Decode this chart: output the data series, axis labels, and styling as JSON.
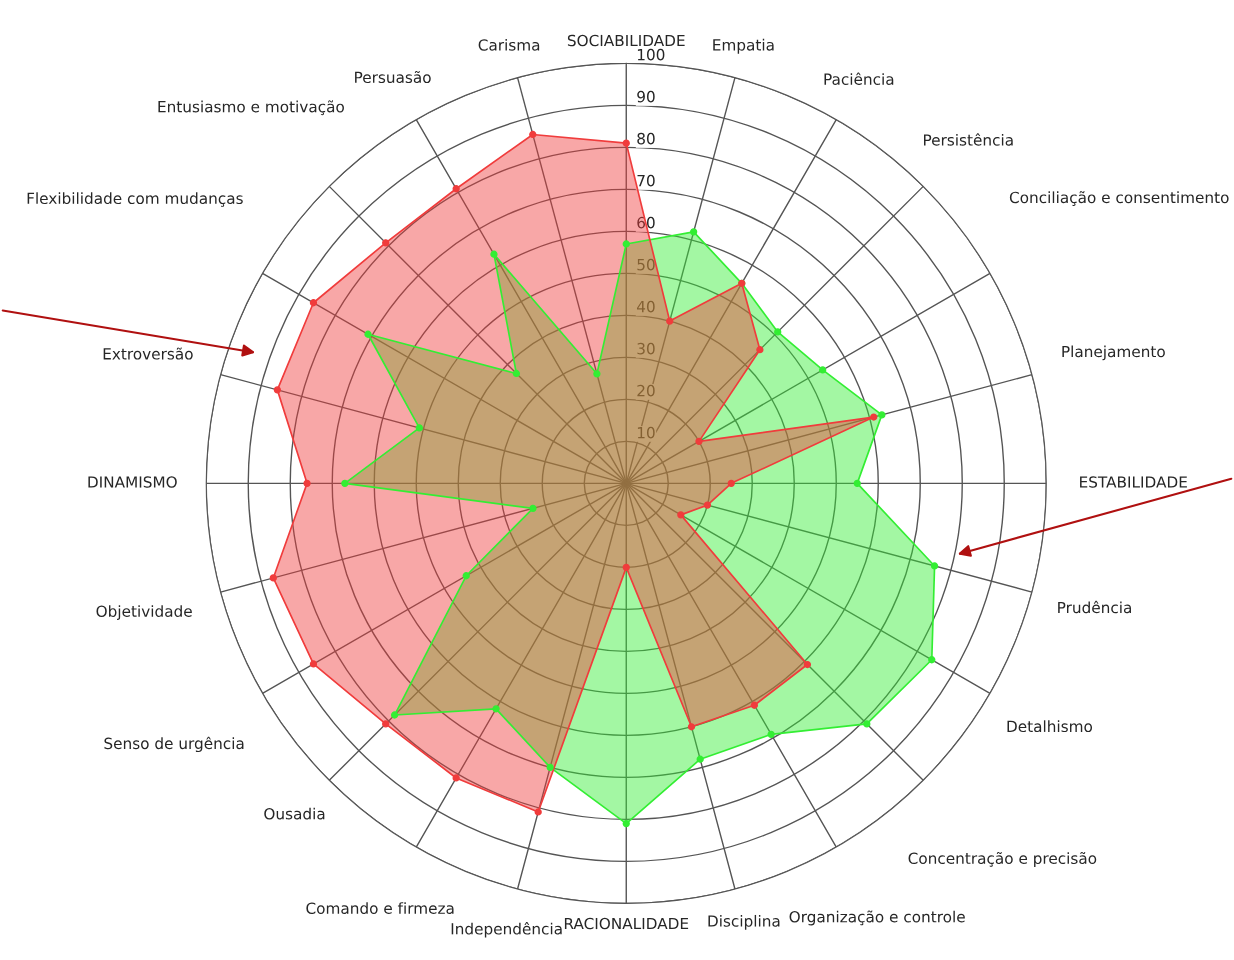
{
  "chart_data": {
    "type": "radar",
    "categories": [
      "SOCIABILIDADE",
      "Empatia",
      "Paciência",
      "Persistência",
      "Conciliação e consentimento",
      "Planejamento",
      "ESTABILIDADE",
      "Prudência",
      "Detalhismo",
      "Concentração e precisão",
      "Organização e controle",
      "Disciplina",
      "RACIONALIDADE",
      "Independência",
      "Comando e firmeza",
      "Ousadia",
      "Senso de urgência",
      "Objetividade",
      "DINAMISMO",
      "Extroversão",
      "Flexibilidade com mudanças",
      "Entusiasmo e motivação",
      "Persuasão",
      "Carisma"
    ],
    "series": [
      {
        "color": "#33ee33",
        "values": [
          57,
          62,
          55,
          51,
          54,
          63,
          55,
          76,
          84,
          81,
          69,
          68,
          81,
          70,
          62,
          78,
          44,
          23,
          67,
          51,
          71,
          37,
          63,
          27
        ]
      },
      {
        "color": "#f03c3c",
        "values": [
          81,
          40,
          55,
          45,
          20,
          61,
          25,
          20,
          15,
          61,
          61,
          60,
          20,
          81,
          81,
          81,
          86,
          87,
          76,
          86,
          86,
          81,
          81,
          86
        ]
      }
    ],
    "ylim": [
      0,
      100
    ],
    "yticks": [
      10,
      20,
      30,
      40,
      50,
      60,
      70,
      80,
      90,
      100
    ],
    "grid": true,
    "marker": "circle"
  }
}
